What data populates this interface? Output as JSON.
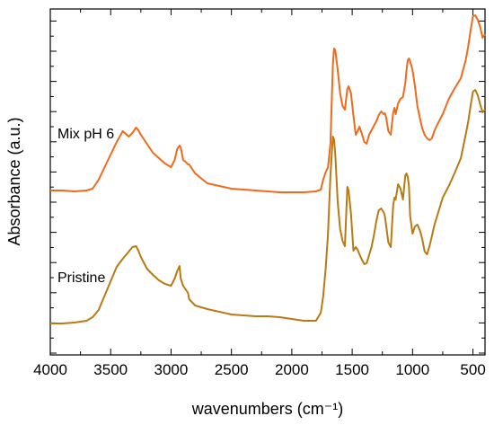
{
  "chart_data": {
    "type": "line",
    "xlabel": "wavenumbers (cm⁻¹)",
    "ylabel": "Absorbance (a.u.)",
    "xlim": [
      4000,
      400
    ],
    "x_reversed": true,
    "x_ticks": [
      4000,
      3500,
      3000,
      2500,
      2000,
      1500,
      1000,
      500
    ],
    "y_tick_labels": "none",
    "grid": false,
    "legend": "none",
    "annotations": [
      {
        "text": "Mix pH 6",
        "series": "Mix pH 6"
      },
      {
        "text": "Pristine",
        "series": "Pristine"
      }
    ],
    "series": [
      {
        "name": "Mix pH 6",
        "color": "#ef6a1a",
        "x": [
          4000,
          3900,
          3800,
          3700,
          3650,
          3600,
          3550,
          3500,
          3450,
          3400,
          3350,
          3320,
          3290,
          3270,
          3250,
          3200,
          3150,
          3100,
          3050,
          3000,
          2970,
          2950,
          2930,
          2920,
          2900,
          2880,
          2860,
          2850,
          2800,
          2700,
          2500,
          2300,
          2200,
          2100,
          2000,
          1900,
          1800,
          1760,
          1740,
          1720,
          1700,
          1680,
          1660,
          1650,
          1640,
          1620,
          1600,
          1580,
          1560,
          1540,
          1530,
          1510,
          1490,
          1470,
          1455,
          1440,
          1420,
          1400,
          1380,
          1360,
          1340,
          1320,
          1300,
          1280,
          1260,
          1240,
          1230,
          1220,
          1200,
          1180,
          1160,
          1150,
          1140,
          1120,
          1100,
          1080,
          1060,
          1050,
          1040,
          1030,
          1020,
          1000,
          980,
          960,
          940,
          920,
          900,
          880,
          860,
          840,
          820,
          800,
          750,
          700,
          650,
          600,
          560,
          540,
          520,
          500,
          480,
          460,
          440,
          420,
          400
        ],
        "y": [
          212,
          212,
          213,
          212,
          210,
          200,
          186,
          172,
          158,
          146,
          152,
          148,
          142,
          145,
          150,
          160,
          170,
          176,
          182,
          186,
          178,
          166,
          162,
          164,
          178,
          180,
          183,
          183,
          193,
          204,
          210,
          212,
          213,
          214,
          214,
          214,
          213,
          211,
          200,
          192,
          186,
          160,
          72,
          54,
          56,
          78,
          104,
          118,
          122,
          99,
          96,
          104,
          129,
          150,
          146,
          141,
          149,
          158,
          160,
          150,
          145,
          140,
          135,
          128,
          124,
          127,
          126,
          130,
          146,
          150,
          125,
          120,
          127,
          115,
          110,
          108,
          92,
          78,
          67,
          65,
          68,
          78,
          96,
          118,
          131,
          143,
          150,
          154,
          156,
          154,
          146,
          140,
          127,
          110,
          98,
          87,
          67,
          52,
          34,
          18,
          17,
          22,
          30,
          42,
          38
        ]
      },
      {
        "name": "Pristine",
        "color": "#b87b14",
        "x": [
          4000,
          3900,
          3800,
          3700,
          3650,
          3600,
          3550,
          3500,
          3450,
          3400,
          3350,
          3320,
          3290,
          3270,
          3250,
          3200,
          3150,
          3100,
          3050,
          3000,
          2970,
          2950,
          2930,
          2920,
          2900,
          2880,
          2860,
          2850,
          2800,
          2700,
          2500,
          2300,
          2200,
          2100,
          2000,
          1900,
          1800,
          1760,
          1740,
          1720,
          1700,
          1680,
          1660,
          1650,
          1640,
          1620,
          1600,
          1580,
          1560,
          1540,
          1530,
          1510,
          1490,
          1470,
          1455,
          1440,
          1420,
          1400,
          1380,
          1360,
          1340,
          1320,
          1300,
          1280,
          1260,
          1240,
          1230,
          1220,
          1200,
          1180,
          1160,
          1150,
          1140,
          1120,
          1100,
          1080,
          1060,
          1050,
          1040,
          1030,
          1020,
          1000,
          980,
          960,
          940,
          920,
          900,
          880,
          860,
          840,
          820,
          800,
          750,
          700,
          650,
          600,
          560,
          540,
          520,
          500,
          480,
          460,
          440,
          420,
          400
        ],
        "y": [
          360,
          360,
          359,
          357,
          353,
          345,
          329,
          313,
          297,
          288,
          280,
          275,
          274,
          279,
          286,
          299,
          306,
          312,
          316,
          318,
          310,
          302,
          296,
          310,
          318,
          322,
          326,
          333,
          340,
          344,
          350,
          352,
          352,
          353,
          355,
          357,
          357,
          348,
          330,
          300,
          260,
          195,
          152,
          155,
          172,
          225,
          255,
          268,
          274,
          208,
          212,
          238,
          279,
          275,
          278,
          283,
          289,
          294,
          293,
          284,
          275,
          262,
          246,
          234,
          232,
          236,
          240,
          250,
          270,
          275,
          228,
          220,
          222,
          205,
          210,
          222,
          195,
          193,
          197,
          207,
          240,
          260,
          252,
          250,
          256,
          266,
          280,
          283,
          274,
          263,
          251,
          242,
          220,
          207,
          192,
          176,
          150,
          136,
          118,
          102,
          100,
          106,
          116,
          125,
          122
        ]
      }
    ]
  }
}
